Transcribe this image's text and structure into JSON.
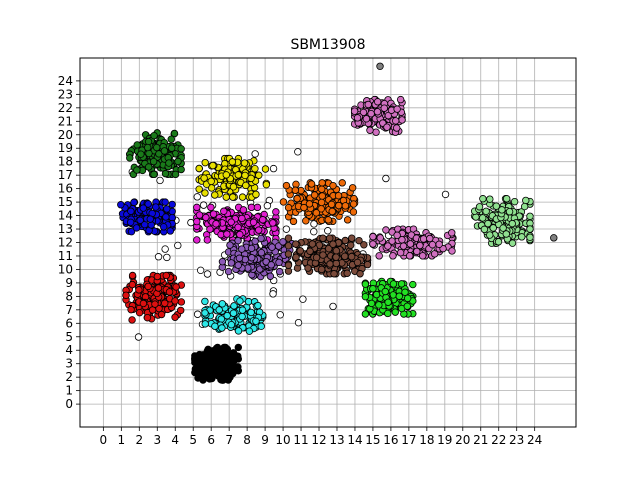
{
  "chart_data": {
    "type": "scatter",
    "title": "SBM13908",
    "xlabel": "",
    "ylabel": "",
    "xlim": [
      -1.3,
      26.3
    ],
    "ylim": [
      -1.7,
      25.7
    ],
    "x_ticks": [
      0,
      1,
      2,
      3,
      4,
      5,
      6,
      7,
      8,
      9,
      10,
      11,
      12,
      13,
      14,
      15,
      16,
      17,
      18,
      19,
      20,
      21,
      22,
      23,
      24
    ],
    "y_ticks": [
      0,
      1,
      2,
      3,
      4,
      5,
      6,
      7,
      8,
      9,
      10,
      11,
      12,
      13,
      14,
      15,
      16,
      17,
      18,
      19,
      20,
      21,
      22,
      23,
      24
    ],
    "grid": true,
    "legend": "none",
    "clusters": [
      {
        "color": "#1a7a1a",
        "center": [
          2.9,
          18.6
        ],
        "spread": [
          1.3,
          1.4
        ],
        "count": 160
      },
      {
        "color": "#e8e000",
        "center": [
          7.2,
          16.8
        ],
        "spread": [
          1.7,
          1.3
        ],
        "count": 150
      },
      {
        "color": "#0a0adb",
        "center": [
          2.4,
          13.9
        ],
        "spread": [
          1.3,
          1.0
        ],
        "count": 150
      },
      {
        "color": "#e020d0",
        "center": [
          7.4,
          13.4
        ],
        "spread": [
          2.0,
          1.1
        ],
        "count": 180
      },
      {
        "color": "#8c5ab8",
        "center": [
          8.6,
          10.9
        ],
        "spread": [
          1.8,
          1.3
        ],
        "count": 150
      },
      {
        "color": "#ee6a08",
        "center": [
          12.0,
          15.0
        ],
        "spread": [
          1.8,
          1.3
        ],
        "count": 180
      },
      {
        "color": "#7a4a3a",
        "center": [
          12.5,
          11.0
        ],
        "spread": [
          2.0,
          1.2
        ],
        "count": 220
      },
      {
        "color": "#d070c0",
        "center": [
          15.3,
          21.4
        ],
        "spread": [
          1.2,
          1.1
        ],
        "count": 160
      },
      {
        "color": "#d070c0",
        "center": [
          17.2,
          12.0
        ],
        "spread": [
          2.0,
          0.9
        ],
        "count": 170
      },
      {
        "color": "#90e090",
        "center": [
          22.2,
          13.6
        ],
        "spread": [
          1.4,
          1.5
        ],
        "count": 170
      },
      {
        "color": "#22e022",
        "center": [
          15.9,
          7.9
        ],
        "spread": [
          1.2,
          1.1
        ],
        "count": 150
      },
      {
        "color": "#2ee8e8",
        "center": [
          7.3,
          6.6
        ],
        "spread": [
          1.5,
          1.1
        ],
        "count": 150
      },
      {
        "color": "#dd1010",
        "center": [
          2.8,
          7.9
        ],
        "spread": [
          1.4,
          1.5
        ],
        "count": 180
      },
      {
        "color": "#000000",
        "center": [
          6.3,
          3.0
        ],
        "spread": [
          1.1,
          1.1
        ],
        "count": 210
      }
    ],
    "outliers": [
      {
        "color": "#ffffff",
        "center": [
          9.0,
          12.0
        ],
        "spread": [
          7.0,
          5.5
        ],
        "count": 60
      },
      {
        "color": "#808080",
        "center": [
          15.4,
          25.1
        ],
        "spread": [
          0.1,
          0.1
        ],
        "count": 1
      },
      {
        "color": "#808080",
        "center": [
          25.1,
          12.4
        ],
        "spread": [
          0.1,
          0.1
        ],
        "count": 1
      }
    ]
  }
}
